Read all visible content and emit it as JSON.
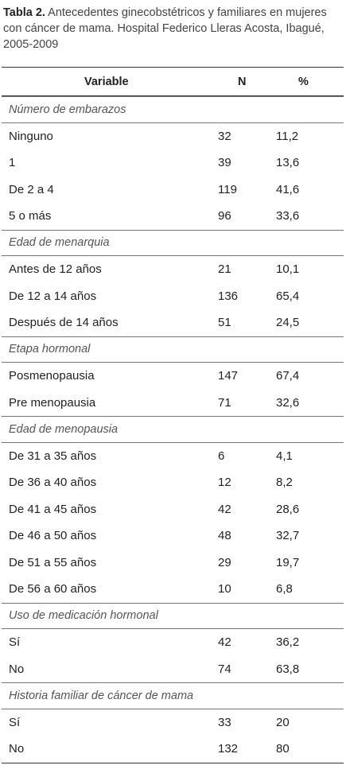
{
  "caption": {
    "label": "Tabla 2.",
    "text": " Antecedentes ginecobstétricos y familiares en mujeres con cáncer de mama. Hospital Federico Lleras Acosta, Ibagué, 2005-2009"
  },
  "table": {
    "headers": {
      "variable": "Variable",
      "n": "N",
      "pct": "%"
    },
    "sections": [
      {
        "title": "Número de embarazos",
        "rows": [
          {
            "variable": "Ninguno",
            "n": "32",
            "pct": "11,2"
          },
          {
            "variable": "1",
            "n": "39",
            "pct": "13,6"
          },
          {
            "variable": "De 2 a 4",
            "n": "119",
            "pct": "41,6"
          },
          {
            "variable": "5 o más",
            "n": "96",
            "pct": "33,6"
          }
        ]
      },
      {
        "title": "Edad de menarquia",
        "rows": [
          {
            "variable": "Antes de 12 años",
            "n": "21",
            "pct": "10,1"
          },
          {
            "variable": "De 12 a 14 años",
            "n": "136",
            "pct": "65,4"
          },
          {
            "variable": "Después de 14 años",
            "n": "51",
            "pct": "24,5"
          }
        ]
      },
      {
        "title": "Etapa hormonal",
        "rows": [
          {
            "variable": "Posmenopausia",
            "n": "147",
            "pct": "67,4"
          },
          {
            "variable": "Pre menopausia",
            "n": "71",
            "pct": "32,6"
          }
        ]
      },
      {
        "title": "Edad de menopausia",
        "rows": [
          {
            "variable": "De 31 a 35 años",
            "n": "6",
            "pct": "4,1"
          },
          {
            "variable": "De 36 a 40 años",
            "n": "12",
            "pct": "8,2"
          },
          {
            "variable": "De 41 a 45 años",
            "n": "42",
            "pct": "28,6"
          },
          {
            "variable": "De 46 a 50 años",
            "n": "48",
            "pct": "32,7"
          },
          {
            "variable": "De 51 a 55 años",
            "n": "29",
            "pct": "19,7"
          },
          {
            "variable": "De 56 a 60 años",
            "n": "10",
            "pct": "6,8"
          }
        ]
      },
      {
        "title": "Uso de medicación hormonal",
        "rows": [
          {
            "variable": "Sí",
            "n": "42",
            "pct": "36,2"
          },
          {
            "variable": "No",
            "n": "74",
            "pct": "63,8"
          }
        ]
      },
      {
        "title": "Historia familiar de cáncer de mama",
        "rows": [
          {
            "variable": "Sí",
            "n": "33",
            "pct": "20"
          },
          {
            "variable": "No",
            "n": "132",
            "pct": "80"
          }
        ]
      }
    ]
  }
}
